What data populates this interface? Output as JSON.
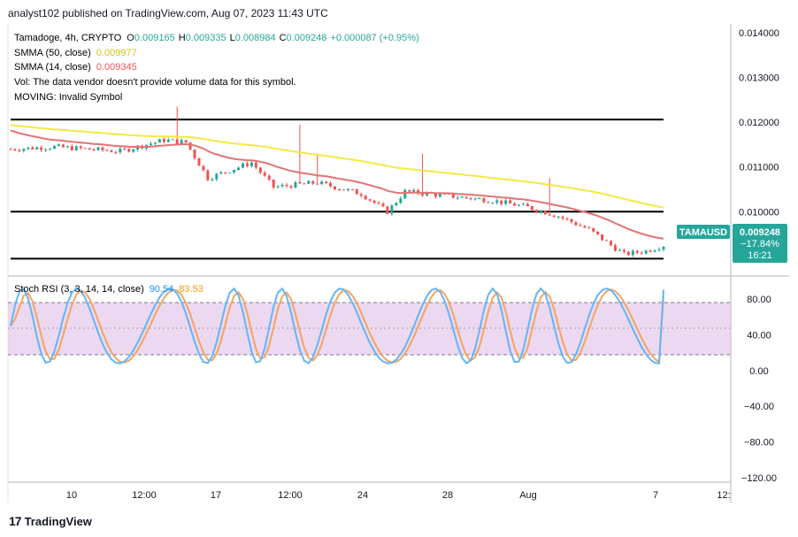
{
  "header": {
    "text": "analyst102 published on TradingView.com, Aug 07, 2023 11:43 UTC"
  },
  "legend": {
    "symbol_line": "Tamadoge, 4h, CRYPTO",
    "ohlc": {
      "o_label": "O",
      "o": "0.009165",
      "h_label": "H",
      "h": "0.009335",
      "l_label": "L",
      "l": "0.008984",
      "c_label": "C",
      "c": "0.009248",
      "change": "+0.000087 (+0.95%)"
    },
    "sma50_label": "SMMA (50, close)",
    "sma50_value": "0.009977",
    "sma14_label": "SMMA (14, close)",
    "sma14_value": "0.009345",
    "vol_line": "Vol: The data vendor doesn't provide volume data for this symbol.",
    "moving_line": "MOVING: Invalid Symbol",
    "rsi_label": "Stoch RSI (3, 3, 14, 14, close)",
    "rsi_k": "90.54",
    "rsi_d": "83.53"
  },
  "price_tag": {
    "symbol": "TAMAUSD",
    "price": "0.009248",
    "change": "−17.84%",
    "countdown": "16:21"
  },
  "colors": {
    "up": "#26a69a",
    "down": "#ef5350",
    "sma50": "#f5e844",
    "sma14": "#e57373",
    "k": "#64b5f6",
    "d": "#f4a460",
    "band": "#e1bee7"
  },
  "footer": {
    "brand": "TradingView",
    "logo": "17"
  },
  "chart_data": [
    {
      "type": "candlestick",
      "title": "Tamadoge, 4h, CRYPTO",
      "y_ticks": [
        "0.014000",
        "0.013000",
        "0.012000",
        "0.011000",
        "0.010000"
      ],
      "x_ticks": [
        "10",
        "12:00",
        "17",
        "12:00",
        "24",
        "28",
        "Aug",
        "7",
        "12:"
      ],
      "ylim": [
        0.0087,
        0.0142
      ],
      "horizontal_lines": [
        0.01206,
        0.01,
        0.00895
      ],
      "last_close": 0.009248,
      "sma50_end": 0.009977,
      "sma14_end": 0.009345
    },
    {
      "type": "line",
      "title": "Stoch RSI (3, 3, 14, 14, close)",
      "y_ticks": [
        "80.00",
        "40.00",
        "0.00",
        "−40.00",
        "−80.00",
        "−120.00"
      ],
      "band": [
        20,
        80
      ],
      "series": [
        {
          "name": "%K",
          "last": 90.54
        },
        {
          "name": "%D",
          "last": 83.53
        }
      ],
      "ylim": [
        -125,
        100
      ]
    }
  ]
}
